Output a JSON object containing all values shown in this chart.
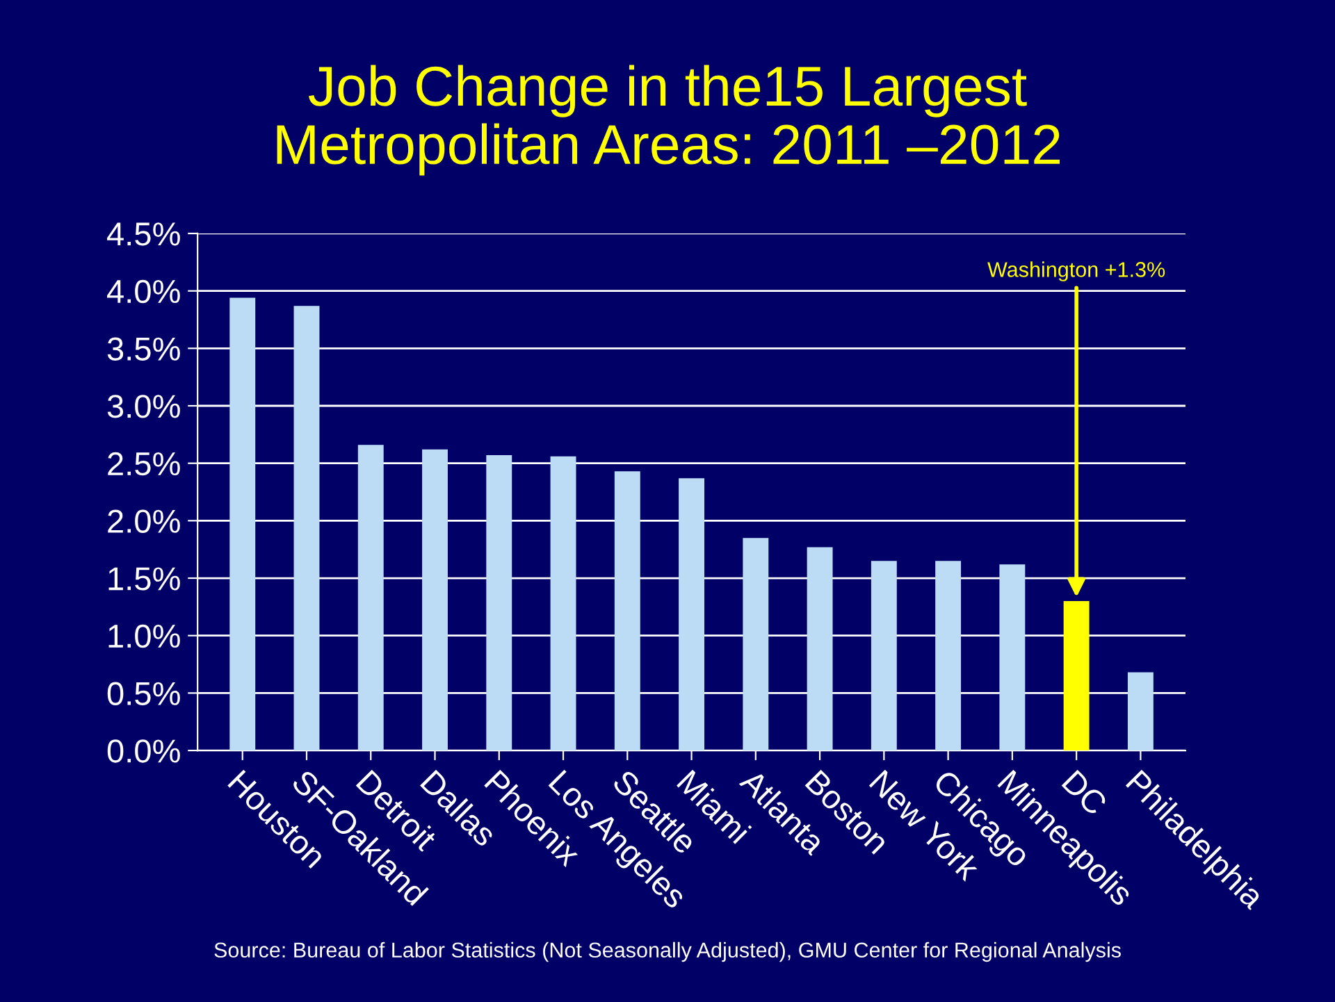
{
  "chart_data": {
    "type": "bar",
    "title": "Job Change in the15 Largest\nMetropolitan Areas: 2011 –2012",
    "categories": [
      "Houston",
      "SF-Oakland",
      "Detroit",
      "Dallas",
      "Phoenix",
      "Los Angeles",
      "Seattle",
      "Miami",
      "Atlanta",
      "Boston",
      "New York",
      "Chicago",
      "Minneapolis",
      "DC",
      "Philadelphia"
    ],
    "values": [
      3.94,
      3.87,
      2.66,
      2.62,
      2.57,
      2.56,
      2.43,
      2.37,
      1.85,
      1.77,
      1.65,
      1.65,
      1.62,
      1.3,
      0.68
    ],
    "colors": [
      "#bcdcf6",
      "#bcdcf6",
      "#bcdcf6",
      "#bcdcf6",
      "#bcdcf6",
      "#bcdcf6",
      "#bcdcf6",
      "#bcdcf6",
      "#bcdcf6",
      "#bcdcf6",
      "#bcdcf6",
      "#bcdcf6",
      "#bcdcf6",
      "#ffff00",
      "#bcdcf6"
    ],
    "ylim": [
      0,
      4.5
    ],
    "yticks": [
      {
        "value": 0,
        "label": "0.0%"
      },
      {
        "value": 0.5,
        "label": "0.5%"
      },
      {
        "value": 1,
        "label": "1.0%"
      },
      {
        "value": 1.5,
        "label": "1.5%"
      },
      {
        "value": 2,
        "label": "2.0%"
      },
      {
        "value": 2.5,
        "label": "2.5%"
      },
      {
        "value": 3,
        "label": "3.0%"
      },
      {
        "value": 3.5,
        "label": "3.5%"
      },
      {
        "value": 4,
        "label": "4.0%"
      },
      {
        "value": 4.5,
        "label": "4.5%"
      }
    ],
    "grid": "y",
    "annotations": [
      {
        "text": "Washington +1.3%",
        "x": "DC",
        "y": 1.3
      },
      "Source: Bureau of Labor Statistics (Not Seasonally Adjusted), GMU Center for Regional Analysis"
    ]
  }
}
